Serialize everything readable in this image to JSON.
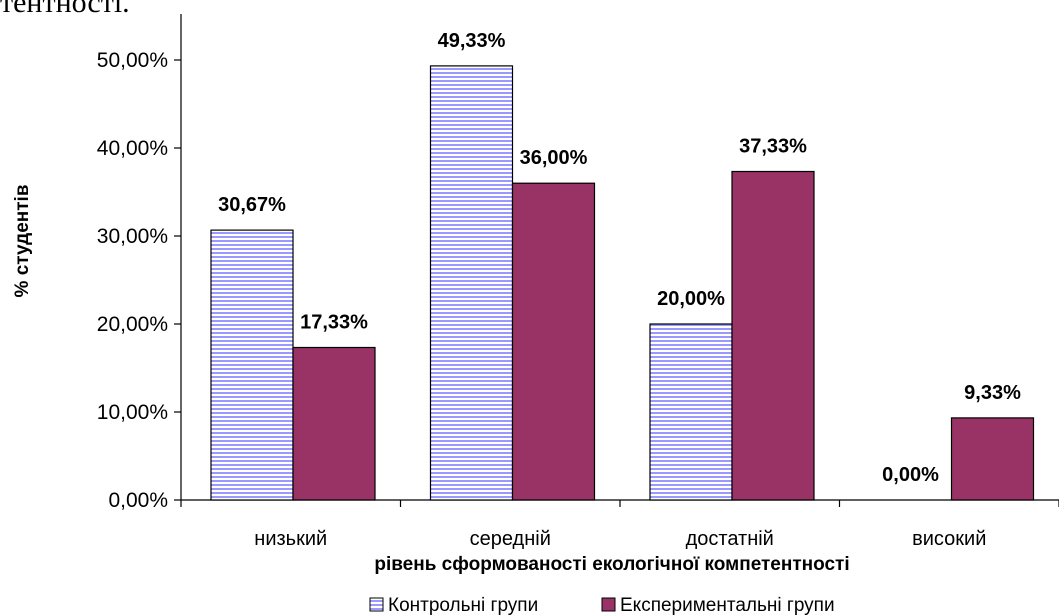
{
  "header_fragment": "тентності.",
  "chart_data": {
    "type": "bar",
    "categories": [
      "низький",
      "середній",
      "достатній",
      "високий"
    ],
    "series": [
      {
        "name": "Контрольні групи",
        "values": [
          30.67,
          49.33,
          20.0,
          0.0
        ],
        "labels": [
          "30,67%",
          "49,33%",
          "20,00%",
          "0,00%"
        ],
        "pattern": "horizontal-stripes",
        "color": "#9999ff"
      },
      {
        "name": "Експериментальні групи",
        "values": [
          17.33,
          36.0,
          37.33,
          9.33
        ],
        "labels": [
          "17,33%",
          "36,00%",
          "37,33%",
          "9,33%"
        ],
        "color": "#993366"
      }
    ],
    "xlabel": "рівень сформованості екологічної компетентності",
    "ylabel": "% студентів",
    "ylim": [
      0,
      50
    ],
    "yticks": [
      0,
      10,
      20,
      30,
      40,
      50
    ],
    "ytick_labels": [
      "0,00%",
      "10,00%",
      "20,00%",
      "30,00%",
      "40,00%",
      "50,00%"
    ],
    "grid": false,
    "legend_position": "bottom"
  }
}
